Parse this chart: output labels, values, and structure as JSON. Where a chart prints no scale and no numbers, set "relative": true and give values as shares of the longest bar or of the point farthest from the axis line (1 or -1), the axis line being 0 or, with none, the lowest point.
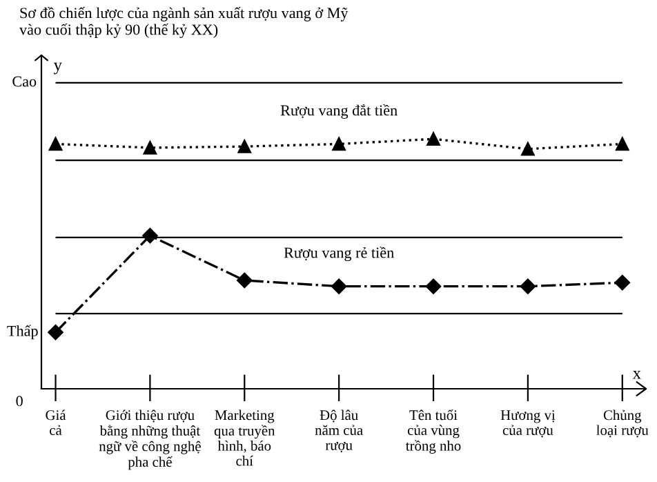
{
  "chart_data": {
    "type": "line",
    "relative": true,
    "title": "Sơ đồ chiến lược của ngành sản xuất rượu vang ở Mỹ\nvào cuối thập kỷ 90 (thế kỷ XX)",
    "xlabel": "x",
    "ylabel": "y",
    "categories": [
      "Giá\ncả",
      "Giới thiệu rượu\nbằng những thuật\nngữ về công nghệ\npha chế",
      "Marketing\nqua truyền\nhình, báo\nchí",
      "Độ lâu\nnăm của\nrượu",
      "Tên tuổi\ncủa vùng\ntrồng nho",
      "Hương vị\ncủa rượu",
      "Chủng\nloại rượu"
    ],
    "series": [
      {
        "name": "Rượu vang đắt tiền",
        "color": "#000000",
        "marker": "triangle",
        "line_style": "dotted",
        "values": [
          0.98,
          0.965,
          0.97,
          0.98,
          1.0,
          0.96,
          0.98
        ]
      },
      {
        "name": "Rượu vang rẻ tiền",
        "color": "#000000",
        "marker": "diamond",
        "line_style": "dashdot",
        "values": [
          0.226,
          0.613,
          0.434,
          0.41,
          0.41,
          0.41,
          0.425
        ]
      }
    ],
    "ref_lines": [
      {
        "axis": "y",
        "value": 1.225,
        "label": "Cao",
        "color": "#000000"
      },
      {
        "axis": "y",
        "value": 0.915,
        "color": "#000000"
      },
      {
        "axis": "y",
        "value": 0.606,
        "color": "#000000"
      },
      {
        "axis": "y",
        "value": 0.301,
        "color": "#000000"
      }
    ],
    "annotations": [
      "Thấp",
      "0"
    ],
    "grid": false,
    "legend": false
  }
}
